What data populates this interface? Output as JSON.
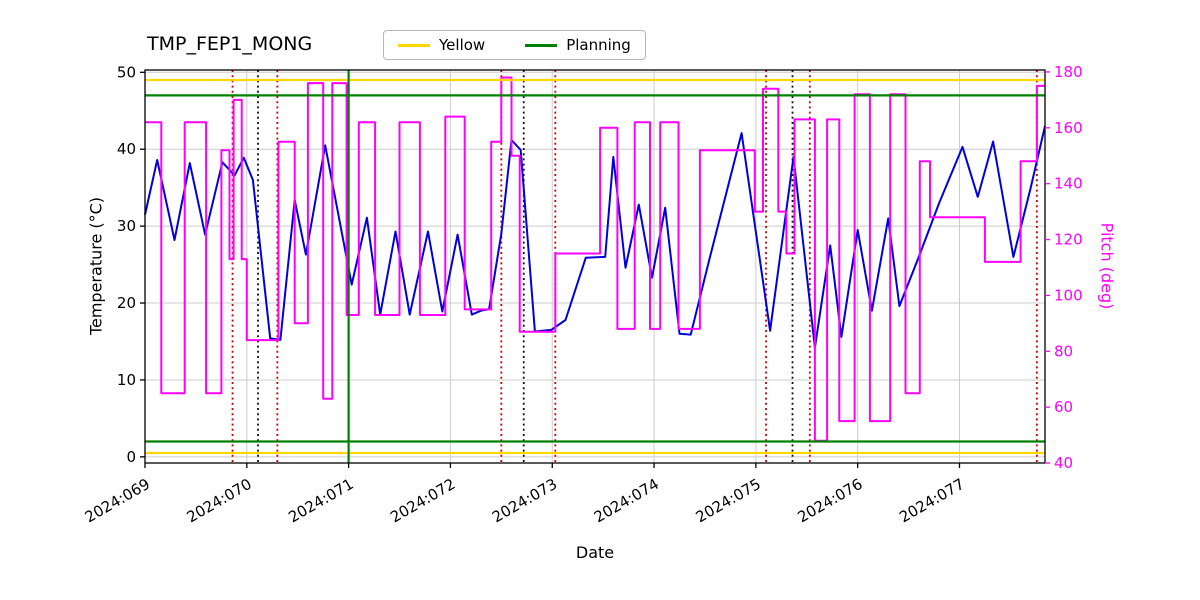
{
  "figure": {
    "title": "TMP_FEP1_MONG",
    "legend": {
      "items": [
        {
          "label": "Yellow",
          "color": "#ffd700"
        },
        {
          "label": "Planning",
          "color": "#008000"
        }
      ]
    }
  },
  "chart_data": {
    "type": "line",
    "title": "TMP_FEP1_MONG",
    "xlabel": "Date",
    "ylabel_left": "Temperature (°C)",
    "ylabel_right": "Pitch (deg)",
    "grid": true,
    "grid_color": "#cccccc",
    "legend_position": "top-center",
    "x_axis": {
      "min": 0,
      "max": 8.84,
      "tick_positions": [
        0,
        1,
        2,
        3,
        4,
        5,
        6,
        7,
        8
      ],
      "tick_labels": [
        "2024:069",
        "2024:070",
        "2024:071",
        "2024:072",
        "2024:073",
        "2024:074",
        "2024:075",
        "2024:076",
        "2024:077"
      ]
    },
    "y_left": {
      "min": -0.8,
      "max": 50.3,
      "ticks": [
        0,
        10,
        20,
        30,
        40,
        50
      ],
      "color": "#000000"
    },
    "y_right": {
      "min": 40,
      "max": 180.7,
      "ticks": [
        40,
        60,
        80,
        100,
        120,
        140,
        160,
        180
      ],
      "color": "#ff00ff"
    },
    "series": [
      {
        "name": "Temperature",
        "type": "line",
        "axis": "left",
        "color": "#0000dd",
        "points": [
          [
            0.0,
            31.5
          ],
          [
            0.12,
            38.6
          ],
          [
            0.29,
            28.2
          ],
          [
            0.44,
            38.2
          ],
          [
            0.59,
            28.9
          ],
          [
            0.76,
            38.3
          ],
          [
            0.88,
            36.6
          ],
          [
            0.97,
            38.9
          ],
          [
            1.06,
            36.0
          ],
          [
            1.23,
            15.4
          ],
          [
            1.33,
            15.2
          ],
          [
            1.47,
            33.4
          ],
          [
            1.58,
            26.3
          ],
          [
            1.77,
            40.5
          ],
          [
            2.03,
            22.4
          ],
          [
            2.18,
            31.1
          ],
          [
            2.31,
            18.5
          ],
          [
            2.46,
            29.3
          ],
          [
            2.6,
            18.5
          ],
          [
            2.78,
            29.3
          ],
          [
            2.92,
            18.9
          ],
          [
            3.07,
            28.9
          ],
          [
            3.21,
            18.5
          ],
          [
            3.3,
            19.0
          ],
          [
            3.38,
            19.2
          ],
          [
            3.5,
            29.0
          ],
          [
            3.6,
            41.2
          ],
          [
            3.69,
            39.9
          ],
          [
            3.83,
            16.3
          ],
          [
            3.99,
            16.5
          ],
          [
            4.13,
            17.8
          ],
          [
            4.33,
            25.9
          ],
          [
            4.52,
            26.0
          ],
          [
            4.6,
            39.0
          ],
          [
            4.72,
            24.6
          ],
          [
            4.85,
            32.8
          ],
          [
            4.98,
            23.3
          ],
          [
            5.11,
            32.4
          ],
          [
            5.25,
            16.0
          ],
          [
            5.36,
            15.9
          ],
          [
            5.55,
            26.0
          ],
          [
            5.86,
            42.1
          ],
          [
            6.14,
            16.4
          ],
          [
            6.37,
            39.0
          ],
          [
            6.58,
            14.2
          ],
          [
            6.73,
            27.5
          ],
          [
            6.84,
            15.6
          ],
          [
            7.0,
            29.5
          ],
          [
            7.14,
            19.0
          ],
          [
            7.3,
            31.0
          ],
          [
            7.41,
            19.6
          ],
          [
            7.6,
            26.0
          ],
          [
            7.8,
            33.0
          ],
          [
            8.03,
            40.3
          ],
          [
            8.18,
            33.8
          ],
          [
            8.33,
            41.0
          ],
          [
            8.53,
            26.0
          ],
          [
            8.7,
            35.0
          ],
          [
            8.84,
            43.0
          ]
        ]
      },
      {
        "name": "Pitch",
        "type": "step",
        "axis": "right",
        "color": "#ff00ff",
        "points": [
          [
            0.0,
            162
          ],
          [
            0.16,
            65
          ],
          [
            0.39,
            162
          ],
          [
            0.6,
            65
          ],
          [
            0.75,
            152
          ],
          [
            0.83,
            113
          ],
          [
            0.87,
            170
          ],
          [
            0.95,
            113
          ],
          [
            1.0,
            84
          ],
          [
            1.31,
            155
          ],
          [
            1.47,
            90
          ],
          [
            1.6,
            176
          ],
          [
            1.75,
            63
          ],
          [
            1.84,
            176
          ],
          [
            1.98,
            93
          ],
          [
            2.1,
            162
          ],
          [
            2.26,
            93
          ],
          [
            2.5,
            162
          ],
          [
            2.7,
            93
          ],
          [
            2.95,
            164
          ],
          [
            3.14,
            95
          ],
          [
            3.4,
            155
          ],
          [
            3.5,
            178
          ],
          [
            3.6,
            150
          ],
          [
            3.68,
            87
          ],
          [
            4.03,
            115
          ],
          [
            4.47,
            160
          ],
          [
            4.64,
            88
          ],
          [
            4.81,
            162
          ],
          [
            4.96,
            88
          ],
          [
            5.06,
            162
          ],
          [
            5.24,
            88
          ],
          [
            5.45,
            152
          ],
          [
            5.99,
            130
          ],
          [
            6.07,
            174
          ],
          [
            6.22,
            130
          ],
          [
            6.3,
            115
          ],
          [
            6.38,
            163
          ],
          [
            6.58,
            48
          ],
          [
            6.7,
            163
          ],
          [
            6.82,
            55
          ],
          [
            6.97,
            172
          ],
          [
            7.12,
            55
          ],
          [
            7.32,
            172
          ],
          [
            7.47,
            65
          ],
          [
            7.61,
            148
          ],
          [
            7.71,
            128
          ],
          [
            8.25,
            112
          ],
          [
            8.6,
            148
          ],
          [
            8.76,
            175
          ]
        ]
      }
    ],
    "reference_lines": {
      "horizontal": [
        {
          "y": 0.5,
          "color": "#ffd700",
          "style": "solid",
          "name": "yellow-limit-low"
        },
        {
          "y": 49,
          "color": "#ffd700",
          "style": "solid",
          "name": "yellow-limit-high"
        },
        {
          "y": 2,
          "color": "#008000",
          "style": "solid",
          "name": "planning-limit-low"
        },
        {
          "y": 47,
          "color": "#008000",
          "style": "solid",
          "name": "planning-limit-high"
        }
      ],
      "vertical": [
        {
          "x": 0.86,
          "color": "#cc0000",
          "style": "dotted",
          "name": "event-red-1"
        },
        {
          "x": 1.11,
          "color": "#111111",
          "style": "dotted",
          "name": "event-black-1"
        },
        {
          "x": 1.3,
          "color": "#cc0000",
          "style": "dotted",
          "name": "event-red-2"
        },
        {
          "x": 3.5,
          "color": "#cc0000",
          "style": "dotted",
          "name": "event-red-3"
        },
        {
          "x": 3.72,
          "color": "#111111",
          "style": "dotted",
          "name": "event-black-2"
        },
        {
          "x": 4.03,
          "color": "#cc0000",
          "style": "dotted",
          "name": "event-red-4"
        },
        {
          "x": 6.1,
          "color": "#cc0000",
          "style": "dotted",
          "name": "event-red-5"
        },
        {
          "x": 6.36,
          "color": "#111111",
          "style": "dotted",
          "name": "event-black-3"
        },
        {
          "x": 6.53,
          "color": "#cc0000",
          "style": "dotted",
          "name": "event-red-6"
        },
        {
          "x": 8.76,
          "color": "#cc0000",
          "style": "dotted",
          "name": "event-red-7"
        },
        {
          "x": 2.0,
          "color": "#008000",
          "style": "solid",
          "name": "planning-vline"
        }
      ]
    }
  }
}
